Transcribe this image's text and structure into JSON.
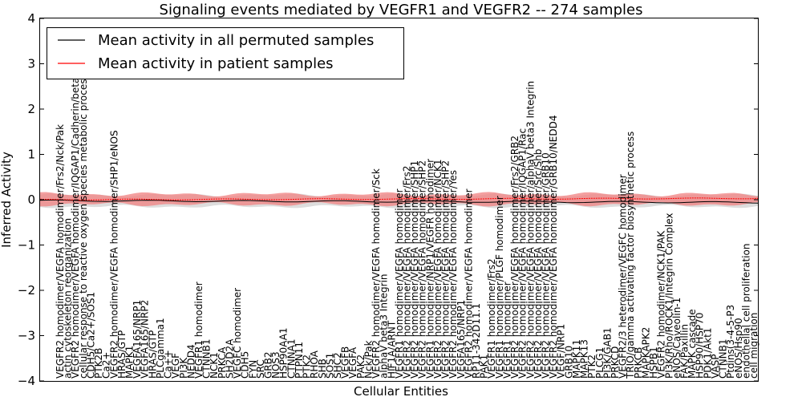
{
  "chart_data": {
    "type": "line",
    "title": "Signaling events mediated by VEGFR1 and VEGFR2 -- 274 samples",
    "xlabel": "Cellular Entities",
    "ylabel": "Inferred Activity",
    "ylim": [
      -4,
      4
    ],
    "yticks": [
      "−4",
      "−3",
      "−2",
      "−1",
      "0",
      "1",
      "2",
      "3",
      "4"
    ],
    "legend": {
      "position": "top-left",
      "entries": [
        {
          "label": "Mean activity in all permuted samples",
          "color": "#000000"
        },
        {
          "label": "Mean activity in patient samples",
          "color": "#ff0000"
        }
      ]
    },
    "colors": {
      "permuted": "#000000",
      "patient": "#ff0000",
      "permuted_band": "#d9d9d9",
      "patient_band": "#f08080"
    },
    "categories": [
      "VEGFR2 homodimer/VEGFA homodimer/Frs2/Nck/Pak",
      "actin cytoskeleton reorganization",
      "VEGFR2 homodimer/VEGFA homodimer/IQGAP1/Cadherin/beta catenin",
      "cellular response to reactive oxygen species metabolic process",
      "CDH5/Ca2+/SOS1",
      "PTK2B",
      "Ca2+",
      "VEGFR2 homodimer/VEGFA homodimer/SHP1/eNOS",
      "HRAS/GTP",
      "MAPK1",
      "VEGFA165/NRP1",
      "VEGFA165/NRP2",
      "HRAS/GTP",
      "PLCgamma1",
      "Ca++",
      "VEGF",
      "PI3K",
      "NEDD4",
      "VEGFR1 homodimer",
      "CTNNB1",
      "NCK1",
      "PRKCA",
      "SH2D2A",
      "VEGFC homodimer",
      "CDH5",
      "FYN",
      "SRC",
      "GRB2",
      "NOS3",
      "HSP90AA1",
      "CTNNA1",
      "PTPN11",
      "PTK2",
      "RHOA",
      "SHB",
      "SOS1",
      "SHC2",
      "VEGFB",
      "VEGFA",
      "PAK2",
      "Nck/Pak",
      "VEGFR2 homodimer/VEGFA homodimer/Sck",
      "alphaV beta3 Integrin",
      "HIF1A/ARNT",
      "VEGFR1 homodimer/VEGFA homodimer",
      "VEGFR2 homodimer/VEGFA homodimer/Frs2",
      "VEGFR2 homodimer/VEGFA homodimer/SHP1",
      "VEGFR2 homodimer/VEGFA homodimer/SHP2",
      "VEGFR1 homodimer/NRP1/VEGFR homodimer",
      "VEGFR2 homodimer/VEGFA homodimer/NCK1",
      "VEGFR2 homodimer/VEGFA homodimer/SHP2",
      "VEGFR2 homodimer/VEGFA homodimer/Yes",
      "VEGFA165/NRP1",
      "VEGFR2 homodimer/VEGFA homodimer",
      "RP11-342D11.1",
      "PAK1",
      "VEGFR1 homodimer/Frs2",
      "VEGFR1 homodimer/PLGF homodimer",
      "VEGFR1 homodimer",
      "VEGFR2 homodimer/VEGFA homodimer/Frs2/GRB2",
      "VEGFR2 homodimer/VEGFA homodimer/IQGAP1/Rac",
      "VEGFR2 homodimer/VEGFA homodimer/alphaV beta3 Integrin",
      "VEGFR2 homodimer/VEGFA homodimer/Src/Shb",
      "VEGFR2 homodimer/VEGFA homodimer/GRB10",
      "VEGFR2 homodimer/VEGFA homodimer/GRB10/NEDD4",
      "VEGF/NRP1",
      "GRB10",
      "MAPK11",
      "MAPK13",
      "PTK2",
      "PLCG1",
      "PI3K/GAB1",
      "PRKCD",
      "VEGFR2/3 heterodimer/VEGFC homodimer",
      "TRIO/gamma activating factor biosynthetic process",
      "PRKCB",
      "MAPKAPK2",
      "HSPB1",
      "VEGFR2 homodimer/NCK1/PAK",
      "PI3K/Rho/ROCK1/Integrin Complex",
      "eNOS/Caveolin-1",
      "FAK/Paxillin",
      "MAPK cascade",
      "HSP90/HSP70",
      "PDK1/Akt1",
      "VASP",
      "CTNNB1",
      "Ptdins(3-4-5-P3",
      "eNOS/Hsp90",
      "endothelial cell proliferation",
      "cell migration"
    ],
    "series": [
      {
        "name": "Mean activity in all permuted samples",
        "mean": -0.02,
        "band": [
          -0.15,
          0.1
        ]
      },
      {
        "name": "Mean activity in patient samples",
        "mean": 0.0,
        "band": [
          -0.1,
          0.12
        ]
      }
    ]
  }
}
